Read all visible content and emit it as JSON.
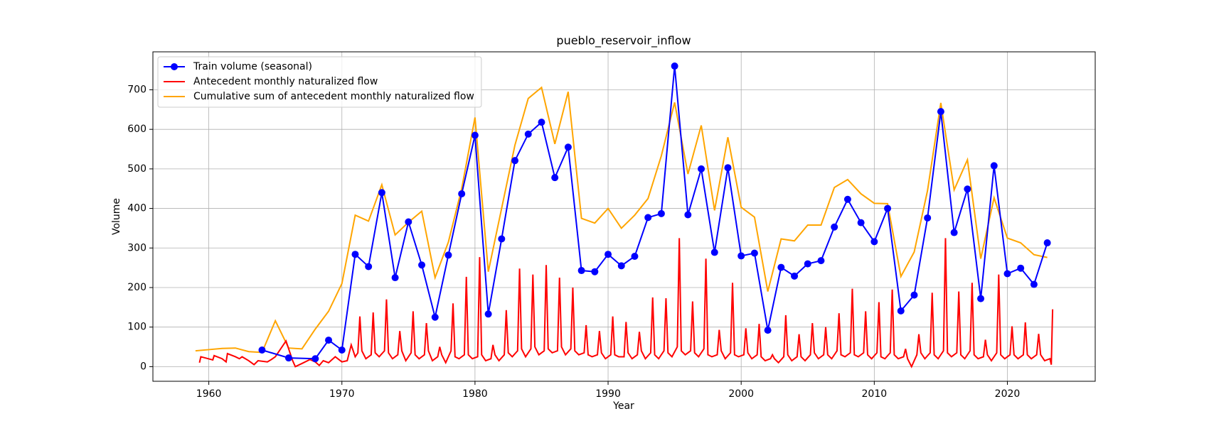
{
  "chart_data": {
    "type": "line",
    "title": "pueblo_reservoir_inflow",
    "xlabel": "Year",
    "ylabel": "Volume",
    "xlim": [
      1955.8,
      2026.6
    ],
    "ylim": [
      -37,
      796
    ],
    "xticks": [
      1960,
      1970,
      1980,
      1990,
      2000,
      2010,
      2020
    ],
    "yticks": [
      0,
      100,
      200,
      300,
      400,
      500,
      600,
      700
    ],
    "grid": true,
    "legend": "upper-left",
    "series": [
      {
        "name": "Train volume (seasonal)",
        "color": "#0000ff",
        "marker": "circle",
        "x": [
          1964,
          1966,
          1968,
          1969,
          1970,
          1971,
          1972,
          1973,
          1974,
          1975,
          1976,
          1977,
          1978,
          1979,
          1980,
          1981,
          1982,
          1983,
          1984,
          1985,
          1986,
          1987,
          1988,
          1989,
          1990,
          1991,
          1992,
          1993,
          1994,
          1995,
          1996,
          1997,
          1998,
          1999,
          2000,
          2001,
          2002,
          2003,
          2004,
          2005,
          2006,
          2007,
          2008,
          2009,
          2010,
          2011,
          2012,
          2013,
          2014,
          2015,
          2016,
          2017,
          2018,
          2019,
          2020,
          2021,
          2022,
          2023
        ],
        "values": [
          42,
          22,
          20,
          67,
          42,
          284,
          253,
          440,
          225,
          366,
          257,
          125,
          282,
          437,
          585,
          133,
          323,
          521,
          588,
          618,
          478,
          555,
          243,
          240,
          284,
          255,
          279,
          377,
          387,
          760,
          384,
          500,
          289,
          503,
          280,
          287,
          92,
          251,
          229,
          260,
          268,
          353,
          423,
          364,
          316,
          400,
          141,
          181,
          376,
          645,
          339,
          449,
          172,
          508,
          235,
          249,
          208,
          313
        ]
      },
      {
        "name": "Antecedent monthly naturalized flow",
        "color": "#ff0000",
        "marker": "none",
        "x": [
          1959.3,
          1959.4,
          1960.3,
          1960.4,
          1961.0,
          1961.3,
          1961.4,
          1962.0,
          1962.3,
          1962.5,
          1963.0,
          1963.4,
          1963.7,
          1964.4,
          1964.7,
          1965.0,
          1965.8,
          1966.3,
          1966.5,
          1967.0,
          1967.6,
          1968.0,
          1968.3,
          1968.6,
          1969.0,
          1969.5,
          1970.0,
          1970.4,
          1970.7,
          1971.0,
          1971.2,
          1971.35,
          1971.5,
          1971.8,
          1972.2,
          1972.35,
          1972.5,
          1972.8,
          1973.2,
          1973.35,
          1973.5,
          1973.8,
          1974.2,
          1974.35,
          1974.5,
          1974.8,
          1975.2,
          1975.35,
          1975.5,
          1975.8,
          1976.2,
          1976.35,
          1976.5,
          1976.8,
          1977.2,
          1977.35,
          1977.5,
          1977.8,
          1978.2,
          1978.35,
          1978.5,
          1978.8,
          1979.2,
          1979.35,
          1979.5,
          1979.8,
          1980.2,
          1980.35,
          1980.5,
          1980.8,
          1981.2,
          1981.35,
          1981.5,
          1981.8,
          1982.2,
          1982.35,
          1982.5,
          1982.8,
          1983.2,
          1983.35,
          1983.5,
          1983.8,
          1984.2,
          1984.35,
          1984.5,
          1984.8,
          1985.2,
          1985.35,
          1985.5,
          1985.8,
          1986.2,
          1986.35,
          1986.5,
          1986.8,
          1987.2,
          1987.35,
          1987.5,
          1987.8,
          1988.2,
          1988.35,
          1988.5,
          1988.8,
          1989.2,
          1989.35,
          1989.5,
          1989.8,
          1990.2,
          1990.35,
          1990.5,
          1990.8,
          1991.2,
          1991.35,
          1991.5,
          1991.8,
          1992.2,
          1992.35,
          1992.5,
          1992.8,
          1993.2,
          1993.35,
          1993.5,
          1993.8,
          1994.2,
          1994.35,
          1994.5,
          1994.8,
          1995.2,
          1995.35,
          1995.5,
          1995.8,
          1996.2,
          1996.35,
          1996.5,
          1996.8,
          1997.2,
          1997.35,
          1997.5,
          1997.8,
          1998.2,
          1998.35,
          1998.5,
          1998.8,
          1999.2,
          1999.35,
          1999.5,
          1999.8,
          2000.2,
          2000.35,
          2000.5,
          2000.8,
          2001.2,
          2001.35,
          2001.5,
          2001.8,
          2002.2,
          2002.35,
          2002.5,
          2002.8,
          2003.2,
          2003.35,
          2003.5,
          2003.8,
          2004.2,
          2004.35,
          2004.5,
          2004.8,
          2005.2,
          2005.35,
          2005.5,
          2005.8,
          2006.2,
          2006.35,
          2006.5,
          2006.8,
          2007.2,
          2007.35,
          2007.5,
          2007.8,
          2008.2,
          2008.35,
          2008.5,
          2008.8,
          2009.2,
          2009.35,
          2009.5,
          2009.8,
          2010.2,
          2010.35,
          2010.5,
          2010.8,
          2011.2,
          2011.35,
          2011.5,
          2011.8,
          2012.2,
          2012.35,
          2012.5,
          2012.8,
          2013.2,
          2013.35,
          2013.5,
          2013.8,
          2014.2,
          2014.35,
          2014.5,
          2014.8,
          2015.2,
          2015.35,
          2015.5,
          2015.8,
          2016.2,
          2016.35,
          2016.5,
          2016.8,
          2017.2,
          2017.35,
          2017.5,
          2017.8,
          2018.2,
          2018.35,
          2018.5,
          2018.8,
          2019.2,
          2019.35,
          2019.5,
          2019.8,
          2020.2,
          2020.35,
          2020.5,
          2020.8,
          2021.2,
          2021.35,
          2021.5,
          2021.8,
          2022.2,
          2022.35,
          2022.5,
          2022.8,
          2023.2,
          2023.3,
          2023.4
        ],
        "values": [
          10,
          25,
          17,
          28,
          20,
          12,
          33,
          25,
          20,
          25,
          15,
          5,
          15,
          12,
          18,
          25,
          65,
          15,
          0,
          8,
          18,
          12,
          3,
          15,
          10,
          25,
          12,
          15,
          55,
          25,
          35,
          127,
          40,
          20,
          30,
          137,
          35,
          25,
          40,
          170,
          35,
          20,
          30,
          90,
          40,
          15,
          35,
          140,
          30,
          20,
          30,
          110,
          40,
          15,
          25,
          50,
          30,
          10,
          40,
          160,
          25,
          20,
          30,
          227,
          30,
          20,
          25,
          277,
          30,
          15,
          20,
          55,
          30,
          15,
          30,
          143,
          35,
          25,
          40,
          248,
          45,
          25,
          45,
          233,
          50,
          30,
          40,
          257,
          45,
          35,
          40,
          225,
          50,
          30,
          45,
          200,
          40,
          30,
          35,
          105,
          30,
          25,
          30,
          90,
          35,
          20,
          30,
          127,
          30,
          25,
          25,
          113,
          35,
          20,
          30,
          88,
          40,
          20,
          35,
          175,
          30,
          20,
          40,
          173,
          35,
          25,
          50,
          325,
          40,
          30,
          40,
          165,
          35,
          25,
          45,
          273,
          30,
          25,
          30,
          93,
          40,
          20,
          35,
          212,
          30,
          25,
          30,
          97,
          35,
          20,
          30,
          108,
          25,
          15,
          20,
          30,
          20,
          10,
          25,
          130,
          30,
          15,
          25,
          82,
          25,
          15,
          30,
          110,
          35,
          20,
          30,
          100,
          30,
          20,
          40,
          135,
          30,
          25,
          35,
          197,
          30,
          25,
          35,
          140,
          30,
          20,
          35,
          163,
          25,
          20,
          35,
          195,
          30,
          20,
          25,
          45,
          20,
          0,
          30,
          82,
          35,
          20,
          35,
          187,
          30,
          20,
          40,
          325,
          35,
          25,
          35,
          190,
          30,
          20,
          40,
          212,
          30,
          20,
          25,
          68,
          30,
          15,
          35,
          233,
          30,
          20,
          30,
          102,
          30,
          20,
          30,
          112,
          30,
          20,
          30,
          83,
          30,
          15,
          20,
          5,
          145
        ]
      },
      {
        "name": "Cumulative sum of antecedent monthly naturalized flow",
        "color": "#ffa500",
        "marker": "none",
        "x": [
          1959,
          1960,
          1961,
          1962,
          1963,
          1964,
          1965,
          1966,
          1967,
          1968,
          1969,
          1970,
          1971,
          1972,
          1973,
          1974,
          1975,
          1976,
          1977,
          1978,
          1979,
          1980,
          1981,
          1982,
          1983,
          1984,
          1985,
          1986,
          1987,
          1988,
          1989,
          1990,
          1991,
          1992,
          1993,
          1994,
          1995,
          1996,
          1997,
          1998,
          1999,
          2000,
          2001,
          2002,
          2003,
          2004,
          2005,
          2006,
          2007,
          2008,
          2009,
          2010,
          2011,
          2012,
          2013,
          2014,
          2015,
          2016,
          2017,
          2018,
          2019,
          2020,
          2021,
          2022,
          2023
        ],
        "values": [
          40,
          43,
          46,
          47,
          38,
          36,
          116,
          47,
          45,
          95,
          140,
          210,
          383,
          368,
          460,
          333,
          365,
          393,
          225,
          315,
          450,
          630,
          240,
          400,
          560,
          678,
          706,
          563,
          695,
          375,
          363,
          400,
          350,
          383,
          425,
          533,
          668,
          487,
          610,
          395,
          580,
          403,
          378,
          190,
          323,
          318,
          358,
          358,
          453,
          473,
          437,
          413,
          412,
          228,
          290,
          445,
          667,
          447,
          523,
          273,
          427,
          325,
          313,
          283,
          276
        ]
      }
    ]
  }
}
